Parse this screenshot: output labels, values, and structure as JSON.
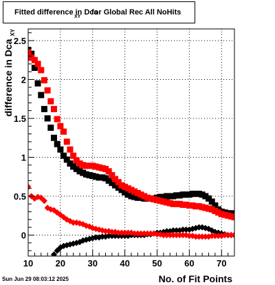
{
  "title": {
    "main": "Fitted difference in Dca",
    "subscript": "XY",
    "tail": "for Global Rec All NoHits"
  },
  "footer": {
    "timestamp": "Sun Jun 29 08:03:12 2025"
  },
  "colors": {
    "series_black": "#000000",
    "series_red": "#ff0000",
    "grid": "#000000"
  },
  "chart_data": {
    "type": "scatter",
    "xlabel": "No. of Fit Points",
    "ylabel": "difference in Dca",
    "ylabel_subscript": "XY",
    "xlim": [
      10,
      74
    ],
    "ylim": [
      -0.27,
      2.65
    ],
    "grid": true,
    "x_ticks": [
      "10",
      "20",
      "30",
      "40",
      "50",
      "60",
      "70"
    ],
    "y_ticks": [
      "0",
      "0.5",
      "1",
      "1.5",
      "2",
      "2.5"
    ],
    "series": [
      {
        "color": "black",
        "marker": "square",
        "points": [
          [
            10,
            2.38
          ],
          [
            11,
            2.33
          ],
          [
            12,
            2.15
          ],
          [
            13,
            1.95
          ],
          [
            14,
            1.8
          ],
          [
            15,
            1.62
          ],
          [
            16,
            1.5
          ],
          [
            17,
            1.38
          ],
          [
            18,
            1.25
          ],
          [
            19,
            1.17
          ],
          [
            20,
            1.1
          ],
          [
            21,
            1.02
          ],
          [
            22,
            0.97
          ],
          [
            23,
            0.92
          ],
          [
            24,
            0.88
          ],
          [
            25,
            0.85
          ],
          [
            26,
            0.82
          ],
          [
            27,
            0.8
          ],
          [
            28,
            0.78
          ],
          [
            29,
            0.77
          ],
          [
            30,
            0.76
          ],
          [
            31,
            0.75
          ],
          [
            32,
            0.74
          ],
          [
            33,
            0.74
          ],
          [
            34,
            0.73
          ],
          [
            35,
            0.7
          ],
          [
            36,
            0.67
          ],
          [
            37,
            0.64
          ],
          [
            38,
            0.61
          ],
          [
            39,
            0.58
          ],
          [
            40,
            0.55
          ],
          [
            41,
            0.52
          ],
          [
            42,
            0.5
          ],
          [
            43,
            0.49
          ],
          [
            44,
            0.48
          ],
          [
            45,
            0.48
          ],
          [
            46,
            0.47
          ],
          [
            47,
            0.47
          ],
          [
            48,
            0.47
          ],
          [
            49,
            0.47
          ],
          [
            50,
            0.48
          ],
          [
            51,
            0.49
          ],
          [
            52,
            0.49
          ],
          [
            53,
            0.5
          ],
          [
            54,
            0.5
          ],
          [
            55,
            0.5
          ],
          [
            56,
            0.51
          ],
          [
            57,
            0.51
          ],
          [
            58,
            0.52
          ],
          [
            59,
            0.52
          ],
          [
            60,
            0.52
          ],
          [
            61,
            0.53
          ],
          [
            62,
            0.53
          ],
          [
            63,
            0.53
          ],
          [
            64,
            0.52
          ],
          [
            65,
            0.5
          ],
          [
            66,
            0.47
          ],
          [
            67,
            0.43
          ],
          [
            68,
            0.38
          ],
          [
            69,
            0.33
          ],
          [
            70,
            0.3
          ],
          [
            71,
            0.29
          ],
          [
            72,
            0.28
          ],
          [
            73,
            0.28
          ],
          [
            74,
            0.27
          ]
        ]
      },
      {
        "color": "red",
        "marker": "square",
        "points": [
          [
            10,
            2.35
          ],
          [
            11,
            2.28
          ],
          [
            12,
            2.25
          ],
          [
            13,
            2.2
          ],
          [
            14,
            2.12
          ],
          [
            15,
            1.99
          ],
          [
            16,
            1.86
          ],
          [
            17,
            1.72
          ],
          [
            18,
            1.62
          ],
          [
            19,
            1.49
          ],
          [
            20,
            1.4
          ],
          [
            21,
            1.33
          ],
          [
            22,
            1.2
          ],
          [
            23,
            1.1
          ],
          [
            24,
            1.02
          ],
          [
            25,
            0.96
          ],
          [
            26,
            0.92
          ],
          [
            27,
            0.9
          ],
          [
            28,
            0.89
          ],
          [
            29,
            0.89
          ],
          [
            30,
            0.89
          ],
          [
            31,
            0.88
          ],
          [
            32,
            0.87
          ],
          [
            33,
            0.86
          ],
          [
            34,
            0.85
          ],
          [
            35,
            0.82
          ],
          [
            36,
            0.77
          ],
          [
            37,
            0.72
          ],
          [
            38,
            0.68
          ],
          [
            39,
            0.64
          ],
          [
            40,
            0.62
          ],
          [
            41,
            0.6
          ],
          [
            42,
            0.58
          ],
          [
            43,
            0.56
          ],
          [
            44,
            0.54
          ],
          [
            45,
            0.52
          ],
          [
            46,
            0.5
          ],
          [
            47,
            0.48
          ],
          [
            48,
            0.47
          ],
          [
            49,
            0.46
          ],
          [
            50,
            0.45
          ],
          [
            51,
            0.44
          ],
          [
            52,
            0.43
          ],
          [
            53,
            0.42
          ],
          [
            54,
            0.41
          ],
          [
            55,
            0.4
          ],
          [
            56,
            0.4
          ],
          [
            57,
            0.4
          ],
          [
            58,
            0.39
          ],
          [
            59,
            0.39
          ],
          [
            60,
            0.38
          ],
          [
            61,
            0.38
          ],
          [
            62,
            0.37
          ],
          [
            63,
            0.37
          ],
          [
            64,
            0.36
          ],
          [
            65,
            0.35
          ],
          [
            66,
            0.34
          ],
          [
            67,
            0.33
          ],
          [
            68,
            0.31
          ],
          [
            69,
            0.29
          ],
          [
            70,
            0.27
          ],
          [
            71,
            0.26
          ],
          [
            72,
            0.25
          ],
          [
            73,
            0.24
          ],
          [
            74,
            0.23
          ]
        ]
      },
      {
        "color": "black",
        "marker": "diamond",
        "points": [
          [
            18,
            -0.25
          ],
          [
            19,
            -0.2
          ],
          [
            20,
            -0.16
          ],
          [
            21,
            -0.14
          ],
          [
            22,
            -0.13
          ],
          [
            23,
            -0.12
          ],
          [
            24,
            -0.11
          ],
          [
            25,
            -0.1
          ],
          [
            26,
            -0.09
          ],
          [
            27,
            -0.07
          ],
          [
            28,
            -0.06
          ],
          [
            29,
            -0.05
          ],
          [
            30,
            -0.04
          ],
          [
            31,
            -0.03
          ],
          [
            32,
            -0.03
          ],
          [
            33,
            -0.02
          ],
          [
            34,
            -0.02
          ],
          [
            35,
            -0.01
          ],
          [
            36,
            -0.01
          ],
          [
            37,
            -0.01
          ],
          [
            38,
            -0.01
          ],
          [
            39,
            -0.01
          ],
          [
            40,
            -0.01
          ],
          [
            41,
            -0.01
          ],
          [
            42,
            0.0
          ],
          [
            43,
            0.0
          ],
          [
            44,
            0.0
          ],
          [
            45,
            0.0
          ],
          [
            46,
            0.0
          ],
          [
            47,
            0.01
          ],
          [
            48,
            0.01
          ],
          [
            49,
            0.02
          ],
          [
            50,
            0.03
          ],
          [
            51,
            0.03
          ],
          [
            52,
            0.04
          ],
          [
            53,
            0.05
          ],
          [
            54,
            0.05
          ],
          [
            55,
            0.06
          ],
          [
            56,
            0.06
          ],
          [
            57,
            0.06
          ],
          [
            58,
            0.07
          ],
          [
            59,
            0.07
          ],
          [
            60,
            0.07
          ],
          [
            61,
            0.08
          ],
          [
            62,
            0.09
          ],
          [
            63,
            0.1
          ],
          [
            64,
            0.1
          ],
          [
            65,
            0.09
          ],
          [
            66,
            0.08
          ],
          [
            67,
            0.06
          ],
          [
            68,
            0.04
          ],
          [
            69,
            0.03
          ],
          [
            70,
            0.02
          ],
          [
            71,
            0.01
          ],
          [
            72,
            0.0
          ],
          [
            73,
            0.0
          ],
          [
            74,
            0.0
          ]
        ]
      },
      {
        "color": "red",
        "marker": "diamond",
        "points": [
          [
            10,
            0.62
          ],
          [
            11,
            0.5
          ],
          [
            12,
            0.47
          ],
          [
            13,
            0.49
          ],
          [
            14,
            0.48
          ],
          [
            15,
            0.44
          ],
          [
            16,
            0.35
          ],
          [
            17,
            0.33
          ],
          [
            18,
            0.32
          ],
          [
            19,
            0.29
          ],
          [
            20,
            0.26
          ],
          [
            21,
            0.23
          ],
          [
            22,
            0.2
          ],
          [
            23,
            0.18
          ],
          [
            24,
            0.16
          ],
          [
            25,
            0.16
          ],
          [
            26,
            0.15
          ],
          [
            27,
            0.14
          ],
          [
            28,
            0.12
          ],
          [
            29,
            0.11
          ],
          [
            30,
            0.09
          ],
          [
            31,
            0.08
          ],
          [
            32,
            0.07
          ],
          [
            33,
            0.06
          ],
          [
            34,
            0.05
          ],
          [
            35,
            0.05
          ],
          [
            36,
            0.04
          ],
          [
            37,
            0.04
          ],
          [
            38,
            0.03
          ],
          [
            39,
            0.03
          ],
          [
            40,
            0.03
          ],
          [
            41,
            0.03
          ],
          [
            42,
            0.03
          ],
          [
            43,
            0.02
          ],
          [
            44,
            0.02
          ],
          [
            45,
            0.02
          ],
          [
            46,
            0.02
          ],
          [
            47,
            0.02
          ],
          [
            48,
            0.02
          ],
          [
            49,
            0.02
          ],
          [
            50,
            0.01
          ],
          [
            51,
            0.01
          ],
          [
            52,
            0.0
          ],
          [
            53,
            0.0
          ],
          [
            54,
            0.0
          ],
          [
            55,
            0.0
          ],
          [
            56,
            0.0
          ],
          [
            57,
            0.0
          ],
          [
            58,
            0.0
          ],
          [
            59,
            0.0
          ],
          [
            60,
            -0.01
          ],
          [
            61,
            -0.01
          ],
          [
            62,
            -0.02
          ],
          [
            63,
            -0.02
          ],
          [
            64,
            -0.02
          ],
          [
            65,
            -0.02
          ],
          [
            66,
            -0.02
          ],
          [
            67,
            -0.01
          ],
          [
            68,
            -0.01
          ],
          [
            69,
            -0.01
          ],
          [
            70,
            -0.01
          ],
          [
            71,
            0.0
          ],
          [
            72,
            0.0
          ],
          [
            73,
            0.0
          ],
          [
            74,
            0.0
          ]
        ]
      }
    ]
  }
}
